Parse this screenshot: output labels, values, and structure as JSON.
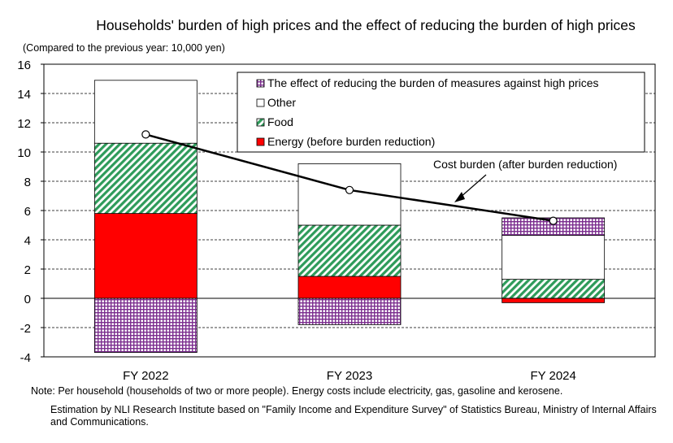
{
  "chart_data": {
    "type": "bar",
    "stacked": true,
    "title": "Households' burden of high prices and the effect of reducing the burden of high prices",
    "unit_label": "(Compared to the previous year: 10,000 yen)",
    "categories": [
      "FY 2022",
      "FY 2023",
      "FY 2024"
    ],
    "ylim": [
      -4,
      16
    ],
    "yticks": [
      -4,
      -2,
      0,
      2,
      4,
      6,
      8,
      10,
      12,
      14,
      16
    ],
    "grid": true,
    "legend_placement": "top-right",
    "series": [
      {
        "name": "Energy (before burden reduction)",
        "values": [
          5.8,
          1.5,
          -0.3
        ],
        "color": "#ff0000",
        "pattern": "solid"
      },
      {
        "name": "Food",
        "values": [
          4.8,
          3.5,
          1.3
        ],
        "color": "#2e9b5a",
        "pattern": "diagonal-hatch"
      },
      {
        "name": "Other",
        "values": [
          4.3,
          4.2,
          3.0
        ],
        "color": "#ffffff",
        "pattern": "none"
      },
      {
        "name": "The effect of reducing the burden of measures against high prices",
        "values": [
          -3.7,
          -1.8,
          1.2
        ],
        "color": "#7b2d8e",
        "pattern": "grid"
      }
    ],
    "line": {
      "name": "Cost burden (after burden reduction)",
      "values": [
        11.2,
        7.4,
        5.3
      ]
    }
  },
  "notes": {
    "note1": "Note: Per household (households of two or more people). Energy costs include electricity, gas, gasoline and kerosene.",
    "note2": "Estimation by NLI Research Institute based on \"Family Income and Expenditure Survey\" of Statistics Bureau, Ministry of Internal Affairs and Communications."
  }
}
